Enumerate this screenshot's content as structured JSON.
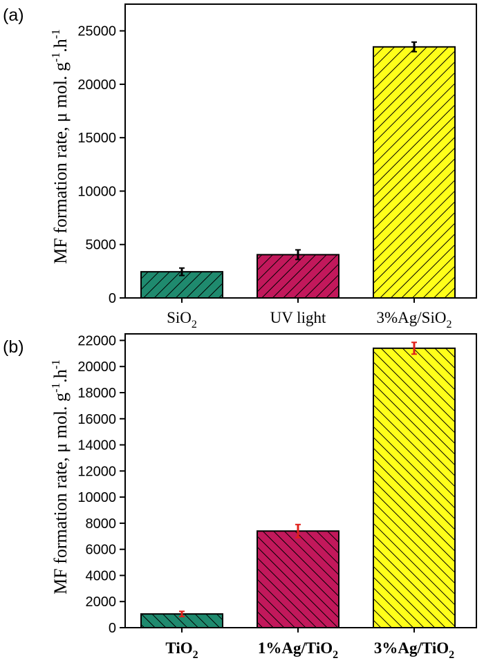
{
  "chart_data": [
    {
      "type": "bar",
      "panel_label": "(a)",
      "ylabel": "MF formation rate, μ mol. g-1.h-1",
      "ylim": [
        0,
        27500
      ],
      "yticks": [
        0,
        5000,
        10000,
        15000,
        20000,
        25000
      ],
      "categories": [
        "SiO2",
        "UV light",
        "3%Ag/SiO2"
      ],
      "category_label_parts": [
        {
          "base": "SiO",
          "sub": "2",
          "suffix": ""
        },
        {
          "base": "UV light",
          "sub": "",
          "suffix": ""
        },
        {
          "base": "3%Ag/SiO",
          "sub": "2",
          "suffix": ""
        }
      ],
      "values": [
        2450,
        4050,
        23500
      ],
      "errors": [
        350,
        450,
        450
      ],
      "colors": [
        "#1f8a6e",
        "#c2185b",
        "#ffff1a"
      ],
      "error_bar_color": "#000000",
      "label_bold": false
    },
    {
      "type": "bar",
      "panel_label": "(b)",
      "ylabel": "MF formation rate, μ mol. g-1.h-1",
      "ylim": [
        0,
        22500
      ],
      "yticks": [
        0,
        2000,
        4000,
        6000,
        8000,
        10000,
        12000,
        14000,
        16000,
        18000,
        20000,
        22000
      ],
      "categories": [
        "TiO2",
        "1%Ag/TiO2",
        "3%Ag/TiO2"
      ],
      "category_label_parts": [
        {
          "base": "TiO",
          "sub": "2",
          "suffix": ""
        },
        {
          "base": "1%Ag/TiO",
          "sub": "2",
          "suffix": ""
        },
        {
          "base": "3%Ag/TiO",
          "sub": "2",
          "suffix": ""
        }
      ],
      "values": [
        1050,
        7400,
        21400
      ],
      "errors": [
        200,
        500,
        450
      ],
      "colors": [
        "#1f8a6e",
        "#c2185b",
        "#ffff1a"
      ],
      "error_bar_color": "#e0201a",
      "label_bold": true
    }
  ]
}
